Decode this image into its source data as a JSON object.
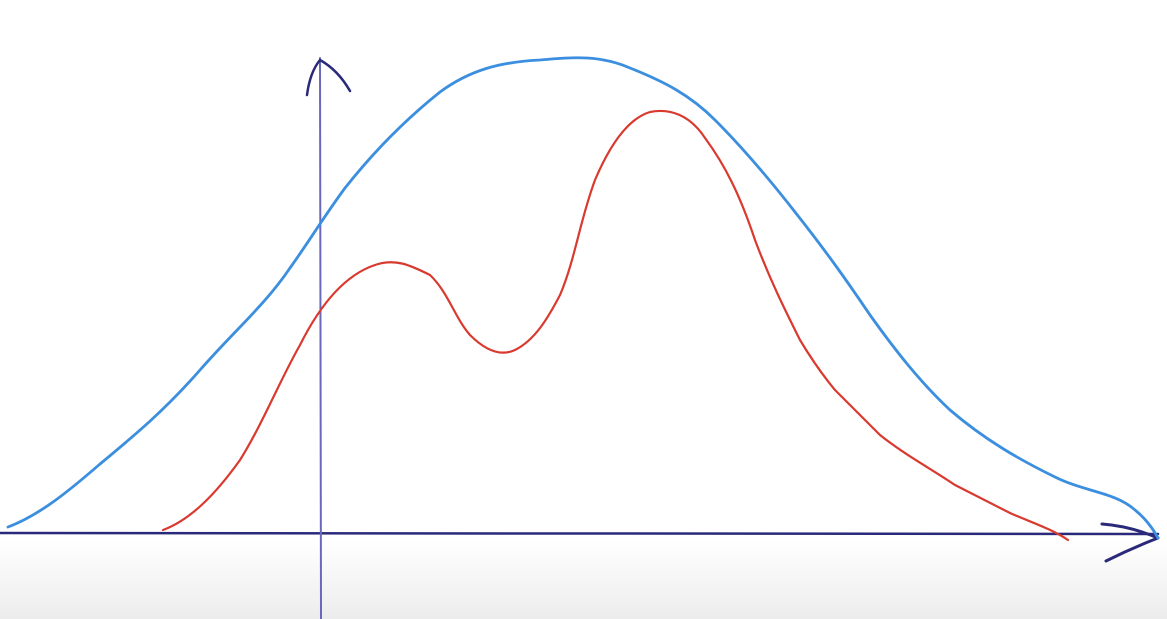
{
  "colors": {
    "axis": "#2b2a7a",
    "vertical_axis": "#6a68b8",
    "blue_curve": "#3b8fde",
    "red_curve": "#d93a2f"
  },
  "icons": {
    "x_axis_arrow": "arrowhead-right-icon",
    "y_axis_arrow": "arrowhead-up-icon"
  }
}
